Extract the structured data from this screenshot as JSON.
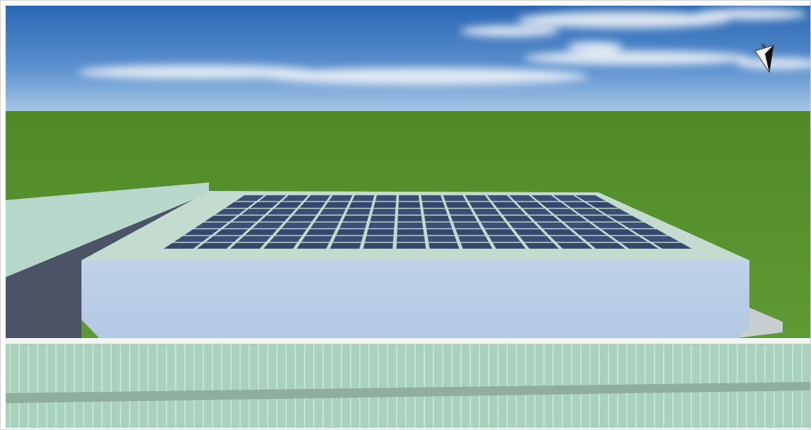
{
  "compass": {
    "label": "N"
  }
}
